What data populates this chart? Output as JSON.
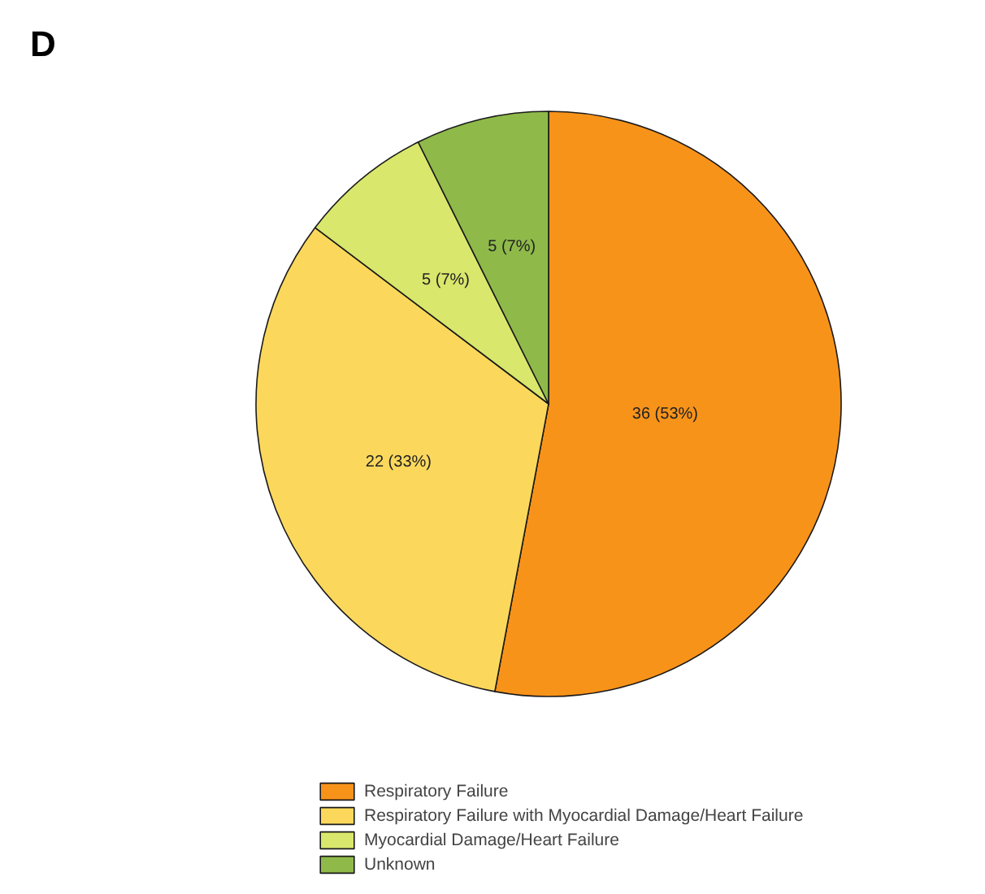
{
  "chart_data": {
    "type": "pie",
    "title": "D",
    "categories": [
      "Respiratory Failure",
      "Respiratory Failure with Myocardial Damage/Heart Failure",
      "Myocardial Damage/Heart Failure",
      "Unknown"
    ],
    "values": [
      36,
      22,
      5,
      5
    ],
    "colors": [
      "#f8931a",
      "#fbd85c",
      "#d9e76c",
      "#8fba4a"
    ],
    "value_labels": [
      "36 (53%)",
      "22 (33%)",
      "5 (7%)",
      "5 (7%)"
    ],
    "legend": "bottom"
  }
}
